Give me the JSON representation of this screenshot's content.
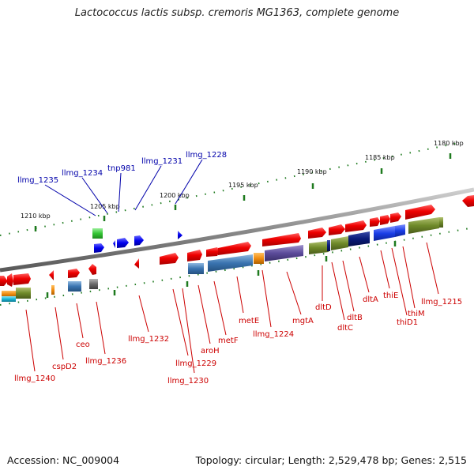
{
  "title": "Lactococcus lactis subsp. cremoris MG1363, complete genome",
  "footer": {
    "accession": "Accession: NC_009004",
    "stats": "Topology: circular; Length: 2,529,478 bp; Genes: 2,515"
  },
  "colors": {
    "backbone": "#8a8a8a",
    "forward_gene": "#e60000",
    "reverse_gene": "#e60000",
    "blue_label": "#0000aa",
    "red_label": "#cc0000",
    "tick_green": "#1e7a1e",
    "ribbon_blue": "#3a74b0",
    "ribbon_purple": "#5b4b9a",
    "ribbon_olive": "#6f8a2a",
    "ribbon_navy": "#0a1a78",
    "ribbon_brightblue": "#1a3de6",
    "ribbon_orange": "#f08c10",
    "ribbon_gray": "#6a6a6a",
    "ribbon_cyan": "#18b8d8",
    "ribbon_green": "#33c633"
  },
  "kbp_ticks": [
    "1180 kbp",
    "1185 kbp",
    "1190 kbp",
    "1195 kbp",
    "1200 kbp",
    "1205 kbp",
    "1210 kbp"
  ],
  "top_labels": [
    "llmg_1235",
    "llmg_1234",
    "tnp981",
    "llmg_1231",
    "llmg_1228"
  ],
  "bottom_labels": [
    "llmg_1240",
    "cspD2",
    "ceo",
    "llmg_1236",
    "llmg_1232",
    "llmg_1229",
    "llmg_1230",
    "aroH",
    "metF",
    "metE",
    "llmg_1224",
    "mgtA",
    "dltD",
    "dltC",
    "dltB",
    "dltA",
    "thiE",
    "thiD1",
    "thiM",
    "llmg_1215"
  ]
}
